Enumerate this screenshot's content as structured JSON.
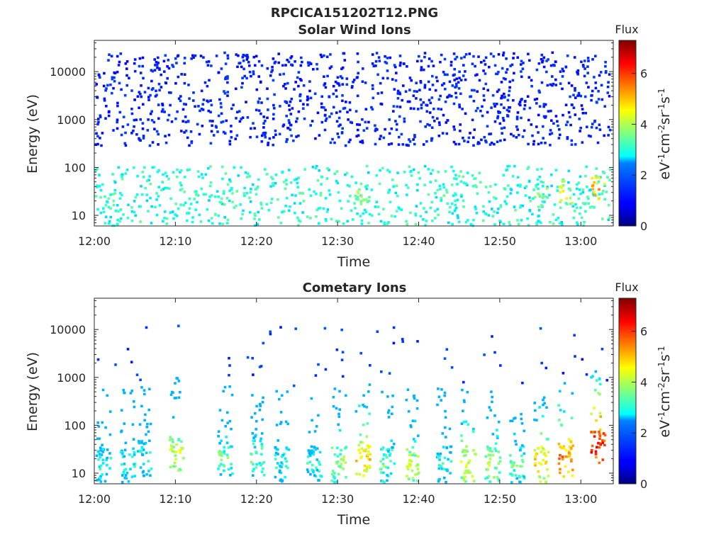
{
  "figure_title": "RPCICA151202T12.PNG",
  "chart_data": [
    {
      "type": "heatmap",
      "title": "Solar Wind Ions",
      "xlabel": "Time",
      "ylabel": "Energy (eV)",
      "x_ticks": [
        "12:00",
        "12:10",
        "12:20",
        "12:30",
        "12:40",
        "12:50",
        "13:00"
      ],
      "y_ticks": [
        "10",
        "100",
        "1000",
        "10000"
      ],
      "y_scale": "log",
      "ylim": [
        6,
        45000
      ],
      "xlim": [
        "12:00",
        "13:04"
      ],
      "colorbar": {
        "label": "Flux",
        "unit": "eV-1cm-2sr-1s-1",
        "range": [
          0,
          7.3
        ],
        "ticks": [
          "0",
          "2",
          "4",
          "6"
        ],
        "colormap": "jet"
      },
      "features": {
        "background": "sparse blue dots (flux ~1) from ~300 eV to ~20000 eV",
        "low_energy": "cyan/green streaks (flux ~2.5-3.5) from 6 eV to ~100 eV",
        "hotspots": [
          {
            "time": "12:33",
            "energy_eV": 25,
            "flux": 4.5
          },
          {
            "time": "12:55",
            "energy_eV": 25,
            "flux": 4.3
          },
          {
            "time": "12:58",
            "energy_eV": 30,
            "flux": 5.0
          },
          {
            "time": "13:02",
            "energy_eV": 35,
            "flux": 5.5
          }
        ]
      }
    },
    {
      "type": "heatmap",
      "title": "Cometary Ions",
      "xlabel": "Time",
      "ylabel": "Energy (eV)",
      "x_ticks": [
        "12:00",
        "12:10",
        "12:20",
        "12:30",
        "12:40",
        "12:50",
        "13:00"
      ],
      "y_ticks": [
        "10",
        "100",
        "1000",
        "10000"
      ],
      "y_scale": "log",
      "ylim": [
        6,
        45000
      ],
      "xlim": [
        "12:00",
        "13:04"
      ],
      "colorbar": {
        "label": "Flux",
        "unit": "eV-1cm-2sr-1s-1",
        "range": [
          0,
          7.3
        ],
        "ticks": [
          "0",
          "2",
          "4",
          "6"
        ],
        "colormap": "jet"
      },
      "features": {
        "bursts": [
          {
            "time": "12:01",
            "peak_energy_eV": 15,
            "flux": 3.5
          },
          {
            "time": "12:04",
            "peak_energy_eV": 15,
            "flux": 3.5
          },
          {
            "time": "12:06",
            "peak_energy_eV": 20,
            "flux": 3.5
          },
          {
            "time": "12:10",
            "peak_energy_eV": 25,
            "flux": 4.8
          },
          {
            "time": "12:16",
            "peak_energy_eV": 20,
            "flux": 4.0
          },
          {
            "time": "12:20",
            "peak_energy_eV": 20,
            "flux": 4.0
          },
          {
            "time": "12:23",
            "peak_energy_eV": 15,
            "flux": 3.5
          },
          {
            "time": "12:27",
            "peak_energy_eV": 15,
            "flux": 3.5
          },
          {
            "time": "12:30",
            "peak_energy_eV": 15,
            "flux": 4.5
          },
          {
            "time": "12:33",
            "peak_energy_eV": 20,
            "flux": 5.5
          },
          {
            "time": "12:36",
            "peak_energy_eV": 15,
            "flux": 4.0
          },
          {
            "time": "12:39",
            "peak_energy_eV": 15,
            "flux": 4.8
          },
          {
            "time": "12:43",
            "peak_energy_eV": 15,
            "flux": 3.5
          },
          {
            "time": "12:46",
            "peak_energy_eV": 15,
            "flux": 5.0
          },
          {
            "time": "12:49",
            "peak_energy_eV": 15,
            "flux": 4.5
          },
          {
            "time": "12:52",
            "peak_energy_eV": 15,
            "flux": 4.0
          },
          {
            "time": "12:55",
            "peak_energy_eV": 15,
            "flux": 5.5
          },
          {
            "time": "12:58",
            "peak_energy_eV": 20,
            "flux": 6.0
          },
          {
            "time": "13:02",
            "peak_energy_eV": 35,
            "flux": 6.8
          }
        ]
      }
    }
  ]
}
